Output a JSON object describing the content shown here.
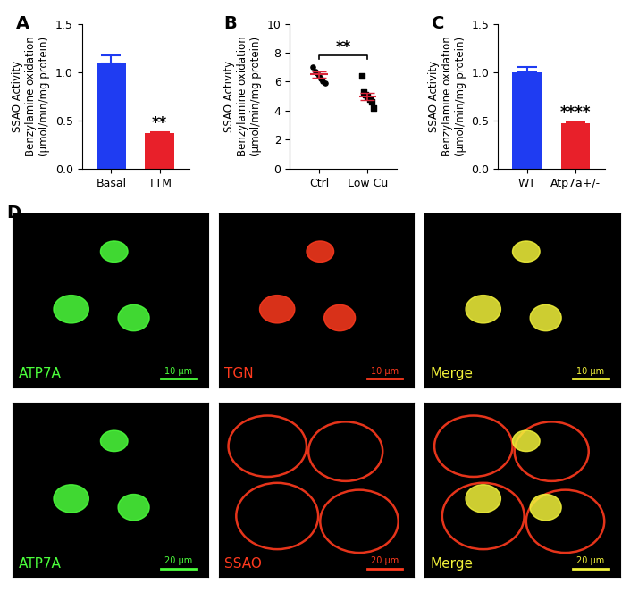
{
  "chart_data": [
    {
      "type": "bar",
      "panel": "A",
      "y_label": "SSAO Activity\nBenzylamine oxidation\n(μmol/min/mg protein)",
      "categories": [
        "Basal",
        "TTM"
      ],
      "values": [
        1.09,
        0.37
      ],
      "errors": [
        0.08,
        0.005
      ],
      "colors": [
        "#1f3cf2",
        "#e8202a"
      ],
      "ylim": [
        0,
        1.5
      ],
      "yticks": [
        {
          "value": 0,
          "label": "0.0"
        },
        {
          "value": 0.5,
          "label": "0.5"
        },
        {
          "value": 1.0,
          "label": "1.0"
        },
        {
          "value": 1.5,
          "label": "1.5"
        }
      ],
      "annotations": [
        {
          "category": "TTM",
          "text": "**"
        }
      ]
    },
    {
      "type": "scatter",
      "panel": "B",
      "y_label": "SSAO Activity\nBenzylamine oxidation\n(μmol/min/mg protein)",
      "categories": [
        "Ctrl",
        "Low Cu"
      ],
      "values": [
        [
          7.0,
          6.7,
          6.6,
          6.4,
          6.2,
          6.0,
          5.9
        ],
        [
          6.4,
          5.3,
          5.1,
          5.0,
          4.8,
          4.6,
          4.2
        ]
      ],
      "means": [
        6.5,
        5.0
      ],
      "errors": [
        0.2,
        0.25
      ],
      "color": "#000000",
      "ylim": [
        0,
        10
      ],
      "yticks": [
        0,
        2,
        4,
        6,
        8,
        10
      ],
      "annotations": [
        {
          "between": [
            "Ctrl",
            "Low Cu"
          ],
          "text": "**"
        }
      ]
    },
    {
      "type": "bar",
      "panel": "C",
      "y_label": "SSAO Activity\nBenzylamine oxidation\n(μmol/min/mg protein)",
      "categories": [
        "WT",
        "Atp7a+/-"
      ],
      "values": [
        1.0,
        0.47
      ],
      "errors": [
        0.05,
        0.01
      ],
      "colors": [
        "#1f3cf2",
        "#e8202a"
      ],
      "ylim": [
        0,
        1.5
      ],
      "yticks": [
        {
          "value": 0,
          "label": "0.0"
        },
        {
          "value": 0.5,
          "label": "0.5"
        },
        {
          "value": 1.0,
          "label": "1.0"
        },
        {
          "value": 1.5,
          "label": "1.5"
        }
      ],
      "annotations": [
        {
          "category": "Atp7a+/-",
          "text": "****"
        }
      ]
    }
  ],
  "images": {
    "panel": "D",
    "rows": [
      [
        {
          "label": "ATP7A",
          "color": "#4cff3c",
          "scale_bar": "10 μm"
        },
        {
          "label": "TGN",
          "color": "#ff3a1e",
          "scale_bar": "10 μm"
        },
        {
          "label": "Merge",
          "color": "#f2f23a",
          "scale_bar": "10 μm"
        }
      ],
      [
        {
          "label": "ATP7A",
          "color": "#4cff3c",
          "scale_bar": "20 μm"
        },
        {
          "label": "SSAO",
          "color": "#ff3a1e",
          "scale_bar": "20 μm"
        },
        {
          "label": "Merge",
          "color": "#f2f23a",
          "scale_bar": "20 μm"
        }
      ]
    ]
  }
}
